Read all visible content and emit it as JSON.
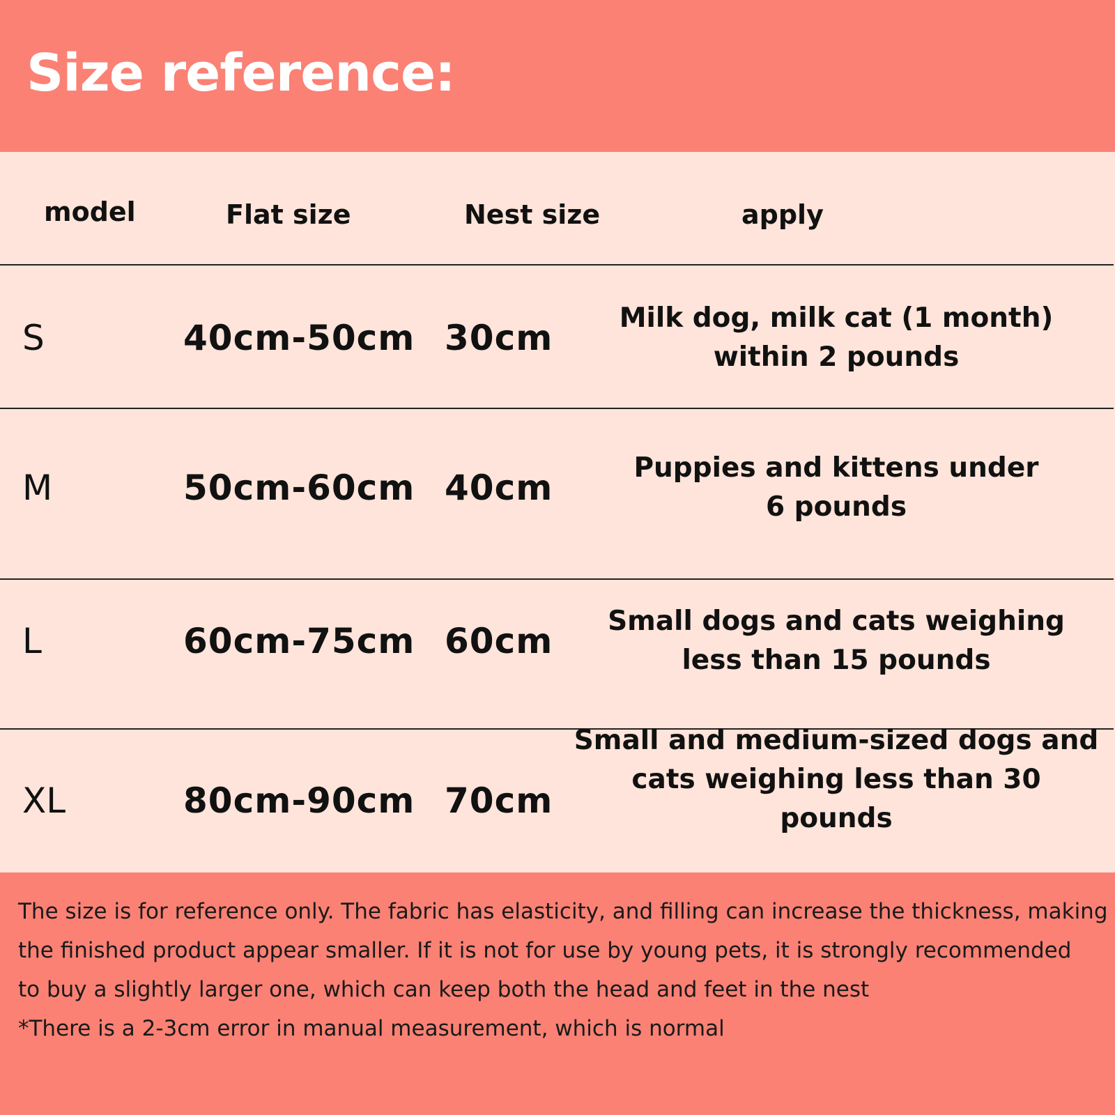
{
  "title": "Size reference:",
  "colors": {
    "header": "#fa8174",
    "table": "#fee4da"
  },
  "table": {
    "headers": [
      "model",
      "Flat size",
      "Nest size",
      "apply"
    ],
    "rows": [
      {
        "model": "S",
        "flat": "40cm-50cm",
        "nest": "30cm",
        "apply": [
          "Milk dog, milk cat (1 month)",
          "within 2 pounds"
        ]
      },
      {
        "model": "M",
        "flat": "50cm-60cm",
        "nest": "40cm",
        "apply": [
          "Puppies and kittens under",
          "6 pounds"
        ]
      },
      {
        "model": "L",
        "flat": "60cm-75cm",
        "nest": "60cm",
        "apply": [
          "Small dogs and cats weighing",
          "less than 15 pounds"
        ]
      },
      {
        "model": "XL",
        "flat": "80cm-90cm",
        "nest": "70cm",
        "apply": [
          "Small and medium-sized dogs and",
          "cats weighing less than 30 pounds"
        ]
      }
    ]
  },
  "notes": [
    "The size is for reference only. The fabric has elasticity, and filling can increase the thickness, making",
    "the finished product appear smaller. If it is not for use by young pets, it is strongly recommended",
    "to buy a slightly larger one, which can keep both the head and feet in the nest",
    "*There is a 2-3cm error in manual measurement, which is normal"
  ]
}
